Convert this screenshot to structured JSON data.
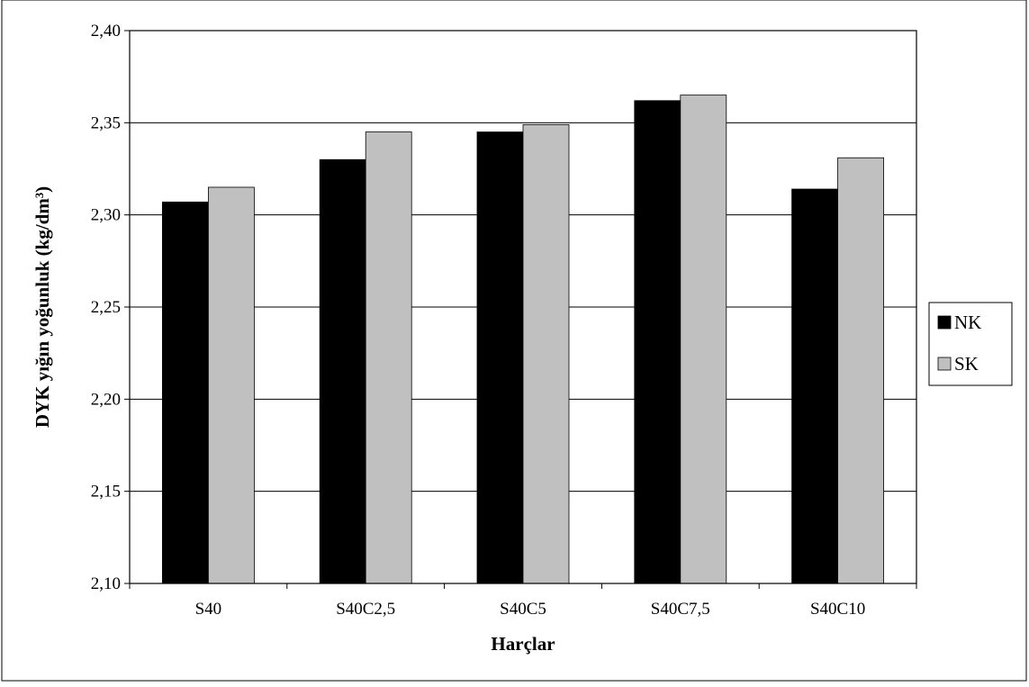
{
  "chart_data": {
    "type": "bar",
    "title": "",
    "xlabel": "Harçlar",
    "ylabel": "DYK yığın yoğunluk (kg/dm³)",
    "categories": [
      "S40",
      "S40C2,5",
      "S40C5",
      "S40C7,5",
      "S40C10"
    ],
    "series": [
      {
        "name": "NK",
        "color": "#000000",
        "values": [
          2.307,
          2.33,
          2.345,
          2.362,
          2.314
        ]
      },
      {
        "name": "SK",
        "color": "#c0c0c0",
        "values": [
          2.315,
          2.345,
          2.349,
          2.365,
          2.331
        ]
      }
    ],
    "ylim": [
      2.1,
      2.4
    ],
    "yticks": [
      "2,10",
      "2,15",
      "2,20",
      "2,25",
      "2,30",
      "2,35",
      "2,40"
    ],
    "grid": true,
    "legend_position": "right"
  }
}
